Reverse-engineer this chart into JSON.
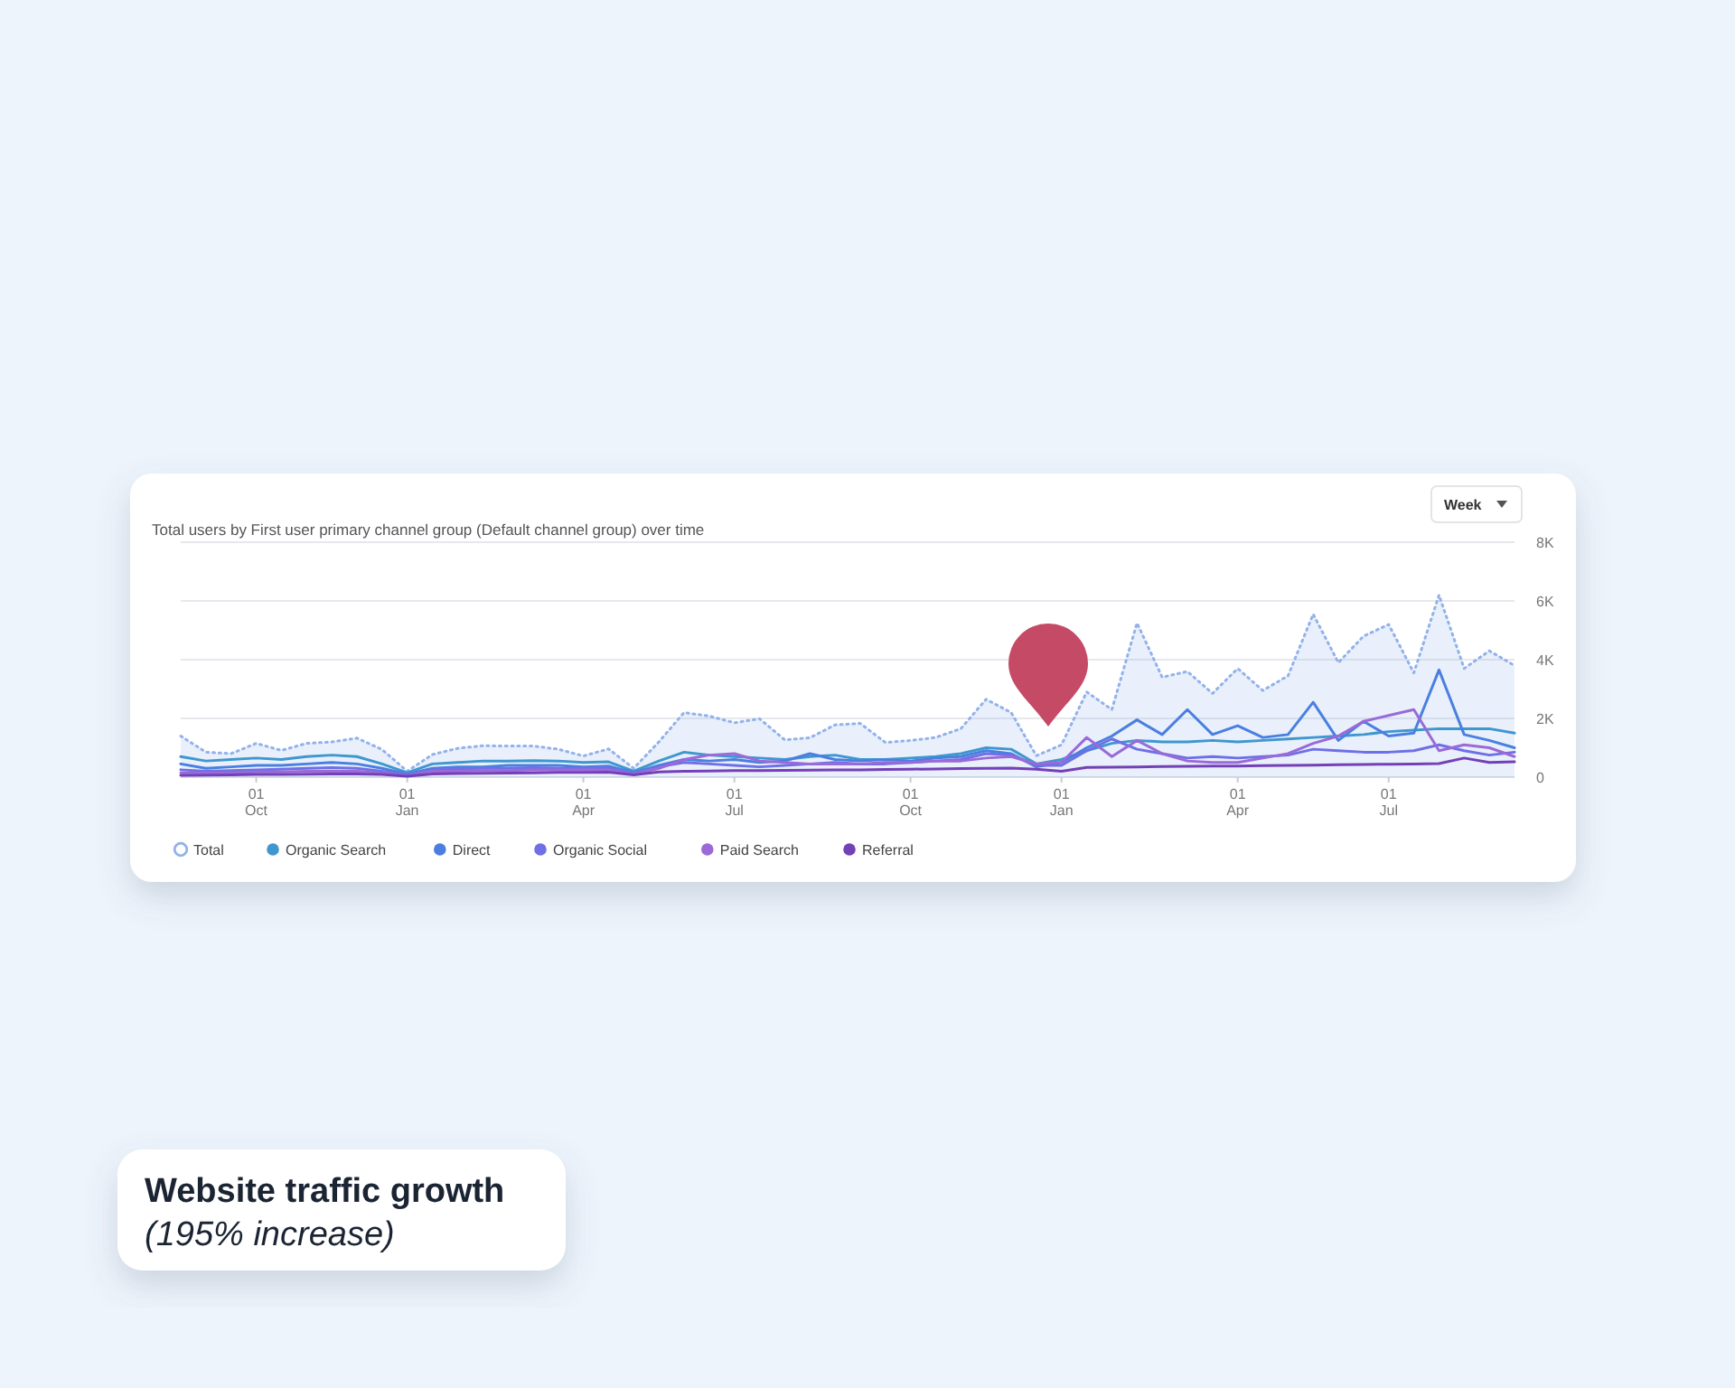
{
  "chart_data": {
    "type": "line",
    "title": "Total users by First user primary channel group (Default channel group) over time",
    "annotations": [
      "Week",
      "Website traffic growth",
      "(195% increase)"
    ],
    "categories": [
      null,
      null,
      null,
      "01\nOct",
      null,
      null,
      null,
      null,
      null,
      "01\nJan",
      null,
      null,
      null,
      null,
      null,
      null,
      "01\nApr",
      null,
      null,
      null,
      null,
      null,
      "01\nJul",
      null,
      null,
      null,
      null,
      null,
      null,
      "01\nOct",
      null,
      null,
      null,
      null,
      null,
      "01\nJan",
      null,
      null,
      null,
      null,
      null,
      null,
      "01\nApr",
      null,
      null,
      null,
      null,
      null,
      "01\nJul",
      null,
      null,
      null,
      null,
      null
    ],
    "ylim": [
      0,
      8000
    ],
    "yticks": [
      {
        "value": 0,
        "label": "0"
      },
      {
        "value": 2000,
        "label": "2K"
      },
      {
        "value": 4000,
        "label": "4K"
      },
      {
        "value": 6000,
        "label": "6K"
      },
      {
        "value": 8000,
        "label": "8K"
      }
    ],
    "grid": "y",
    "legend": "bottom left",
    "series": [
      {
        "name": "Total",
        "type": "area",
        "line_style": "dotted",
        "color": "#93b2ea",
        "values": [
          1400,
          850,
          800,
          1150,
          910,
          1150,
          1200,
          1330,
          940,
          200,
          770,
          980,
          1070,
          1060,
          1060,
          950,
          720,
          960,
          300,
          1200,
          2200,
          2080,
          1850,
          1990,
          1270,
          1340,
          1780,
          1830,
          1180,
          1250,
          1350,
          1650,
          2650,
          2200,
          730,
          1100,
          2900,
          2300,
          5250,
          3400,
          3600,
          2850,
          3700,
          2950,
          3450,
          5550,
          3900,
          4800,
          5200,
          3550,
          6200,
          3700,
          4300,
          3800
        ]
      },
      {
        "name": "Organic Search",
        "color": "#3f97cf",
        "values": [
          700,
          550,
          600,
          650,
          600,
          700,
          750,
          700,
          450,
          150,
          450,
          500,
          550,
          550,
          560,
          550,
          500,
          520,
          200,
          550,
          850,
          750,
          700,
          650,
          600,
          700,
          750,
          600,
          600,
          650,
          700,
          800,
          1000,
          950,
          450,
          600,
          900,
          1150,
          1250,
          1200,
          1200,
          1250,
          1200,
          1250,
          1300,
          1350,
          1400,
          1450,
          1550,
          1600,
          1650,
          1650,
          1650,
          1500
        ]
      },
      {
        "name": "Direct",
        "color": "#4a7fe0",
        "values": [
          450,
          300,
          350,
          400,
          400,
          450,
          500,
          450,
          300,
          100,
          300,
          350,
          350,
          400,
          400,
          400,
          350,
          380,
          150,
          400,
          600,
          550,
          600,
          500,
          550,
          800,
          600,
          550,
          600,
          550,
          650,
          700,
          900,
          800,
          350,
          500,
          1000,
          1400,
          1950,
          1450,
          2300,
          1450,
          1750,
          1350,
          1450,
          2550,
          1250,
          1900,
          1400,
          1500,
          3650,
          1450,
          1250,
          1000
        ]
      },
      {
        "name": "Organic Social",
        "color": "#6f6fe6",
        "values": [
          250,
          200,
          220,
          250,
          270,
          300,
          320,
          300,
          200,
          80,
          250,
          280,
          300,
          300,
          320,
          300,
          300,
          320,
          120,
          350,
          500,
          450,
          400,
          350,
          400,
          450,
          500,
          450,
          450,
          500,
          550,
          600,
          800,
          750,
          400,
          400,
          900,
          1300,
          950,
          800,
          650,
          700,
          650,
          700,
          750,
          950,
          900,
          850,
          850,
          900,
          1100,
          900,
          750,
          850
        ]
      },
      {
        "name": "Paid Search",
        "color": "#9a6ad8",
        "values": [
          150,
          150,
          150,
          180,
          180,
          200,
          200,
          200,
          150,
          50,
          200,
          200,
          220,
          220,
          250,
          250,
          250,
          250,
          100,
          300,
          600,
          750,
          800,
          550,
          500,
          450,
          450,
          450,
          500,
          500,
          550,
          550,
          650,
          700,
          450,
          500,
          1350,
          700,
          1250,
          800,
          550,
          500,
          500,
          650,
          800,
          1150,
          1400,
          1900,
          2100,
          2300,
          900,
          1100,
          1000,
          700
        ]
      },
      {
        "name": "Referral",
        "color": "#7440b8",
        "values": [
          60,
          70,
          80,
          90,
          90,
          100,
          110,
          110,
          90,
          30,
          110,
          120,
          130,
          140,
          150,
          160,
          160,
          170,
          80,
          180,
          200,
          210,
          220,
          220,
          230,
          240,
          250,
          250,
          260,
          270,
          280,
          290,
          300,
          310,
          270,
          200,
          330,
          340,
          350,
          360,
          370,
          380,
          380,
          390,
          400,
          410,
          420,
          430,
          440,
          450,
          460,
          650,
          500,
          520
        ]
      }
    ]
  }
}
